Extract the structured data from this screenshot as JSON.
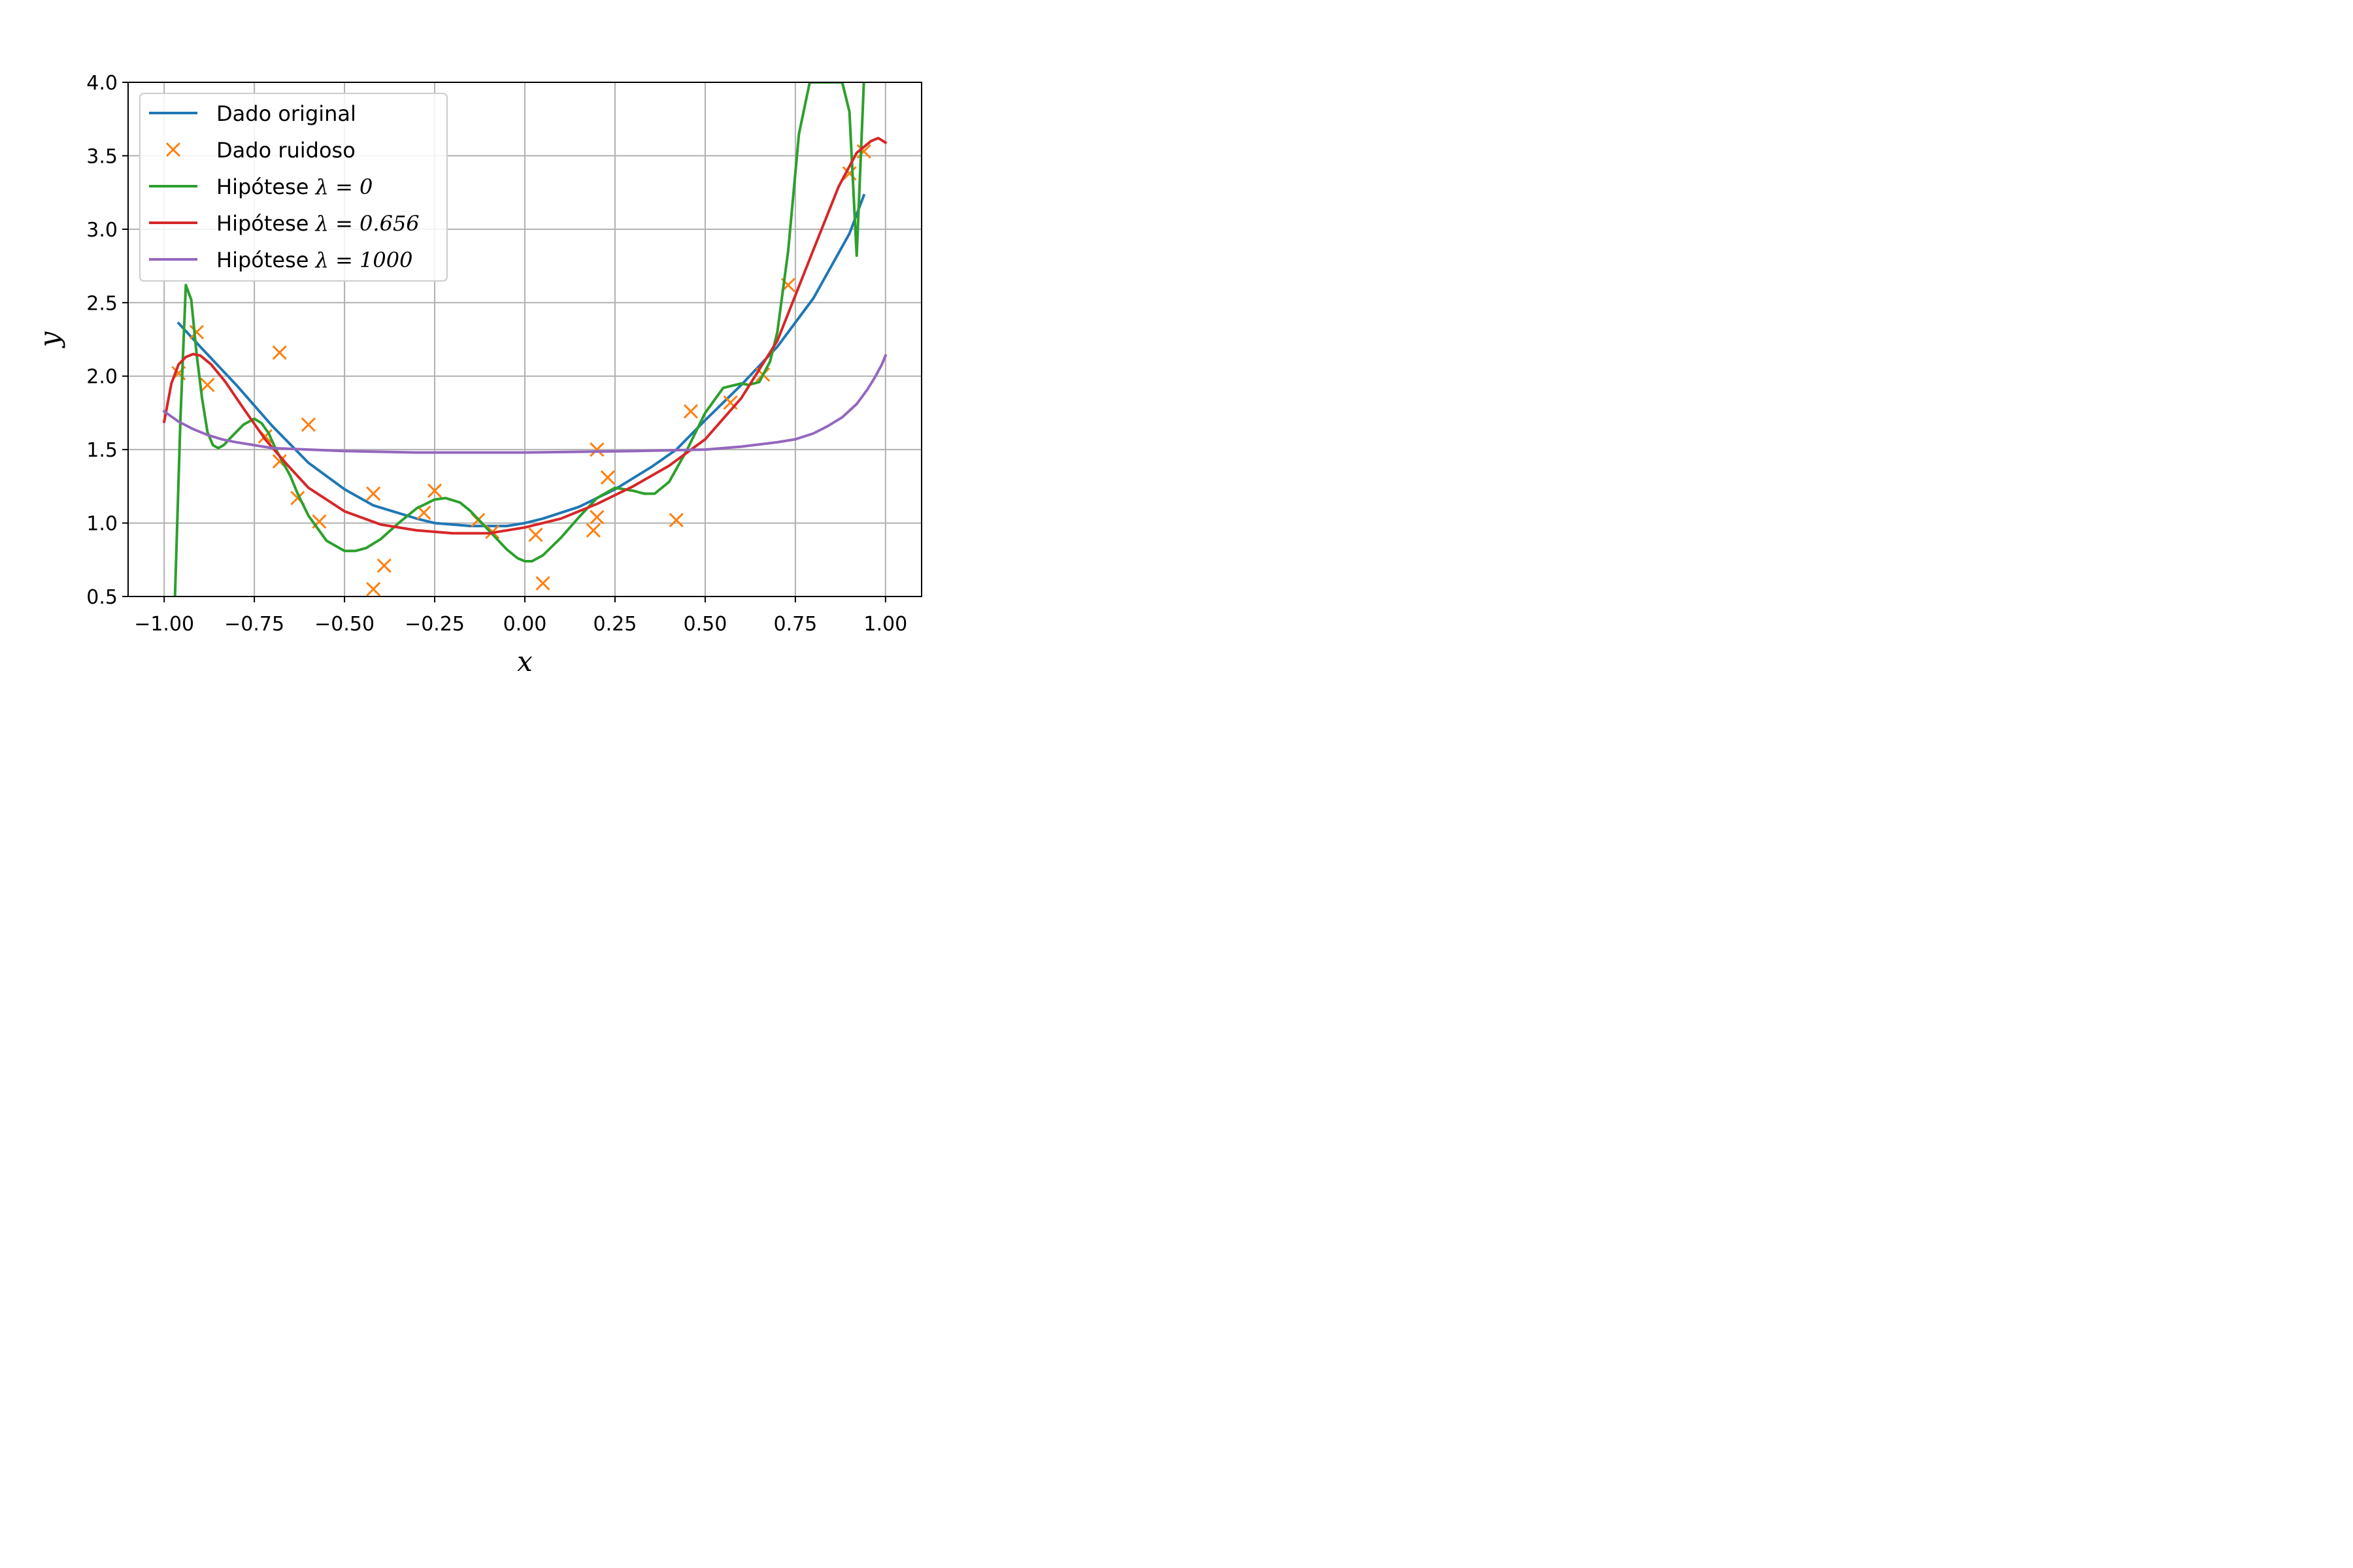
{
  "chart_data": {
    "type": "line",
    "xlabel": "x",
    "ylabel": "y",
    "xlim": [
      -1.1,
      1.1
    ],
    "ylim": [
      0.5,
      4.0
    ],
    "xticks": [
      -1.0,
      -0.75,
      -0.5,
      -0.25,
      0.0,
      0.25,
      0.5,
      0.75,
      1.0
    ],
    "xtick_labels": [
      "−1.00",
      "−0.75",
      "−0.50",
      "−0.25",
      "0.00",
      "0.25",
      "0.50",
      "0.75",
      "1.00"
    ],
    "yticks": [
      0.5,
      1.0,
      1.5,
      2.0,
      2.5,
      3.0,
      3.5,
      4.0
    ],
    "ytick_labels": [
      "0.5",
      "1.0",
      "1.5",
      "2.0",
      "2.5",
      "3.0",
      "3.5",
      "4.0"
    ],
    "grid": true,
    "legend_position": "top-left",
    "series": [
      {
        "name": "Dado original",
        "legend_label": "Dado original",
        "type": "line",
        "color": "#1f77b4",
        "x": [
          -0.96,
          -0.9,
          -0.8,
          -0.7,
          -0.6,
          -0.5,
          -0.42,
          -0.3,
          -0.25,
          -0.15,
          -0.05,
          0.0,
          0.05,
          0.15,
          0.25,
          0.35,
          0.42,
          0.5,
          0.6,
          0.7,
          0.8,
          0.9,
          0.94
        ],
        "y": [
          2.36,
          2.2,
          1.94,
          1.66,
          1.41,
          1.23,
          1.12,
          1.03,
          1.0,
          0.98,
          0.98,
          1.0,
          1.03,
          1.11,
          1.23,
          1.38,
          1.5,
          1.7,
          1.94,
          2.2,
          2.53,
          2.97,
          3.23
        ]
      },
      {
        "name": "Dado ruidoso",
        "legend_label": "Dado ruidoso",
        "type": "scatter",
        "marker": "x",
        "color": "#ff7f0e",
        "x": [
          -0.96,
          -0.91,
          -0.88,
          -0.72,
          -0.68,
          -0.68,
          -0.63,
          -0.6,
          -0.57,
          -0.42,
          -0.42,
          -0.39,
          -0.28,
          -0.25,
          -0.13,
          -0.09,
          0.03,
          0.05,
          0.19,
          0.2,
          0.2,
          0.23,
          0.42,
          0.46,
          0.57,
          0.66,
          0.73,
          0.9,
          0.94
        ],
        "y": [
          2.02,
          2.3,
          1.94,
          1.59,
          2.16,
          1.42,
          1.17,
          1.67,
          1.01,
          1.2,
          0.55,
          0.71,
          1.07,
          1.22,
          1.02,
          0.94,
          0.92,
          0.59,
          0.95,
          1.04,
          1.5,
          1.31,
          1.02,
          1.76,
          1.82,
          2.01,
          2.62,
          3.38,
          3.53
        ]
      },
      {
        "name": "Hipótese λ = 0",
        "legend_prefix": "Hipótese ",
        "legend_math": "λ = 0",
        "type": "line",
        "color": "#2ca02c",
        "x": [
          -0.97,
          -0.955,
          -0.94,
          -0.925,
          -0.91,
          -0.895,
          -0.88,
          -0.865,
          -0.85,
          -0.835,
          -0.82,
          -0.8,
          -0.78,
          -0.75,
          -0.73,
          -0.71,
          -0.69,
          -0.67,
          -0.65,
          -0.63,
          -0.6,
          -0.55,
          -0.5,
          -0.47,
          -0.44,
          -0.42,
          -0.4,
          -0.35,
          -0.3,
          -0.25,
          -0.22,
          -0.18,
          -0.15,
          -0.1,
          -0.05,
          -0.02,
          0.0,
          0.02,
          0.05,
          0.1,
          0.15,
          0.2,
          0.25,
          0.3,
          0.33,
          0.36,
          0.4,
          0.45,
          0.5,
          0.55,
          0.6,
          0.62,
          0.65,
          0.68,
          0.7,
          0.73,
          0.76,
          0.79,
          0.82,
          0.85,
          0.88,
          0.9,
          0.92,
          0.94
        ],
        "y": [
          0.5,
          1.7,
          2.62,
          2.52,
          2.15,
          1.85,
          1.62,
          1.53,
          1.51,
          1.53,
          1.57,
          1.62,
          1.67,
          1.71,
          1.68,
          1.61,
          1.5,
          1.41,
          1.32,
          1.2,
          1.05,
          0.88,
          0.81,
          0.81,
          0.83,
          0.86,
          0.89,
          1.0,
          1.1,
          1.16,
          1.17,
          1.14,
          1.08,
          0.95,
          0.82,
          0.76,
          0.74,
          0.74,
          0.78,
          0.9,
          1.04,
          1.17,
          1.24,
          1.22,
          1.2,
          1.2,
          1.28,
          1.5,
          1.75,
          1.92,
          1.95,
          1.94,
          1.96,
          2.1,
          2.3,
          2.85,
          3.65,
          4.0,
          4.0,
          4.0,
          4.0,
          3.8,
          2.82,
          4.0
        ]
      },
      {
        "name": "Hipótese λ = 0.656",
        "legend_prefix": "Hipótese ",
        "legend_math": "λ = 0.656",
        "type": "line",
        "color": "#d62728",
        "x": [
          -1.0,
          -0.98,
          -0.96,
          -0.94,
          -0.92,
          -0.9,
          -0.87,
          -0.83,
          -0.78,
          -0.72,
          -0.66,
          -0.6,
          -0.5,
          -0.4,
          -0.3,
          -0.2,
          -0.1,
          0.0,
          0.1,
          0.2,
          0.3,
          0.4,
          0.5,
          0.6,
          0.7,
          0.8,
          0.87,
          0.92,
          0.96,
          0.98,
          1.0
        ],
        "y": [
          1.69,
          1.95,
          2.08,
          2.13,
          2.15,
          2.14,
          2.08,
          1.96,
          1.78,
          1.57,
          1.4,
          1.24,
          1.08,
          0.99,
          0.95,
          0.93,
          0.93,
          0.97,
          1.03,
          1.13,
          1.25,
          1.39,
          1.57,
          1.85,
          2.24,
          2.86,
          3.29,
          3.52,
          3.6,
          3.62,
          3.59
        ]
      },
      {
        "name": "Hipótese λ = 1000",
        "legend_prefix": "Hipótese ",
        "legend_math": "λ = 1000",
        "type": "line",
        "color": "#9467bd",
        "x": [
          -1.0,
          -0.96,
          -0.92,
          -0.88,
          -0.84,
          -0.8,
          -0.75,
          -0.7,
          -0.6,
          -0.5,
          -0.3,
          0.0,
          0.3,
          0.5,
          0.6,
          0.7,
          0.75,
          0.8,
          0.84,
          0.88,
          0.92,
          0.95,
          0.97,
          0.99,
          1.0
        ],
        "y": [
          1.76,
          1.69,
          1.64,
          1.6,
          1.57,
          1.55,
          1.53,
          1.51,
          1.5,
          1.49,
          1.48,
          1.48,
          1.49,
          1.5,
          1.52,
          1.55,
          1.57,
          1.61,
          1.66,
          1.72,
          1.81,
          1.91,
          1.99,
          2.08,
          2.14
        ]
      }
    ]
  }
}
